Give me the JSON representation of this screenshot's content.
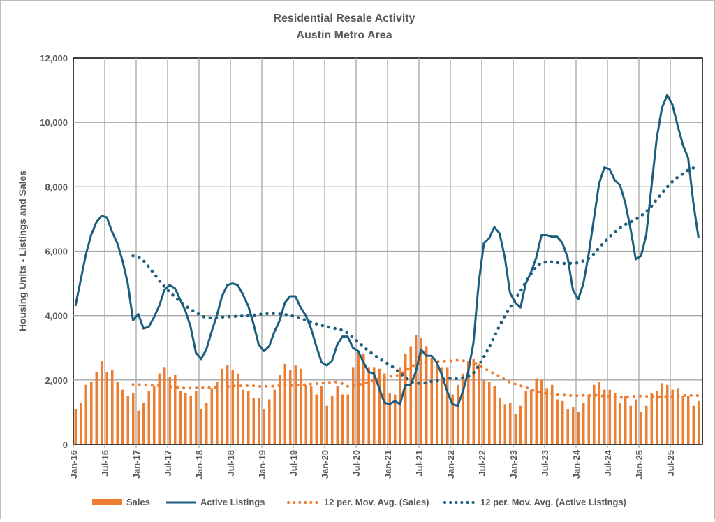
{
  "chart_data": {
    "type": "bar+line",
    "title": "Residential Resale Activity",
    "subtitle": "Austin Metro Area",
    "ylabel": "Housing Units - Listings and Sales",
    "xlabel": "",
    "ylim": [
      0,
      12000
    ],
    "yticks": [
      0,
      2000,
      4000,
      6000,
      8000,
      10000,
      12000
    ],
    "ytick_labels": [
      "0",
      "2,000",
      "4,000",
      "6,000",
      "8,000",
      "10,000",
      "12,000"
    ],
    "x_start": "Jan-16",
    "x_tick_labels": [
      "Jan-16",
      "Jul-16",
      "Jan-17",
      "Jul-17",
      "Jan-18",
      "Jul-18",
      "Jan-19",
      "Jul-19",
      "Jan-20",
      "Jul-20",
      "Jan-21",
      "Jul-21",
      "Jan-22",
      "Jul-22",
      "Jan-23",
      "Jul-23",
      "Jan-24",
      "Jul-24",
      "Jan-25",
      "Jul-25"
    ],
    "grid": true,
    "legend_position": "bottom",
    "ma_period": 12,
    "colors": {
      "sales": "#ED7D31",
      "listings": "#1B5E7E"
    },
    "legend": [
      "Sales",
      "Active Listings",
      "12 per. Mov. Avg. (Sales)",
      "12 per. Mov. Avg. (Active Listings)"
    ],
    "series": [
      {
        "name": "Sales",
        "type": "bar",
        "values": [
          1100,
          1300,
          1850,
          1950,
          2250,
          2600,
          2250,
          2300,
          1950,
          1700,
          1500,
          1600,
          1050,
          1300,
          1650,
          1800,
          2200,
          2400,
          2100,
          2150,
          1650,
          1600,
          1500,
          1650,
          1100,
          1300,
          1750,
          1950,
          2350,
          2450,
          2300,
          2200,
          1700,
          1650,
          1450,
          1450,
          1100,
          1400,
          1700,
          2150,
          2500,
          2300,
          2450,
          2350,
          1850,
          1800,
          1550,
          1800,
          1200,
          1500,
          1800,
          1550,
          1550,
          2400,
          2850,
          2800,
          2400,
          2400,
          2350,
          2200,
          1600,
          1550,
          2400,
          2800,
          3050,
          3400,
          3300,
          3050,
          2700,
          2500,
          2400,
          2400,
          1550,
          1850,
          2200,
          2600,
          2650,
          2500,
          2000,
          1950,
          1800,
          1450,
          1250,
          1300,
          950,
          1200,
          1650,
          1700,
          2050,
          2000,
          1750,
          1850,
          1400,
          1350,
          1100,
          1150,
          1000,
          1300,
          1550,
          1850,
          1950,
          1700,
          1700,
          1600,
          1300,
          1500,
          1200,
          1400,
          1000,
          1200,
          1600,
          1650,
          1900,
          1850,
          1700,
          1750,
          1500,
          1500,
          1200,
          1350
        ]
      },
      {
        "name": "Active Listings",
        "type": "line",
        "values": [
          4300,
          5100,
          5900,
          6500,
          6900,
          7100,
          7050,
          6600,
          6250,
          5700,
          5000,
          3850,
          4050,
          3600,
          3650,
          3950,
          4300,
          4800,
          4950,
          4850,
          4500,
          4150,
          3650,
          2850,
          2650,
          2950,
          3500,
          4000,
          4600,
          4950,
          5000,
          4950,
          4650,
          4300,
          3750,
          3100,
          2900,
          3050,
          3500,
          3850,
          4400,
          4600,
          4600,
          4250,
          4000,
          3600,
          3050,
          2550,
          2450,
          2600,
          3100,
          3350,
          3350,
          3000,
          2900,
          2550,
          2250,
          2200,
          1750,
          1300,
          1250,
          1350,
          1250,
          1850,
          1850,
          2250,
          2950,
          2750,
          2750,
          2550,
          2150,
          1650,
          1250,
          1200,
          1650,
          2250,
          3150,
          5000,
          6250,
          6400,
          6750,
          6550,
          5800,
          4700,
          4400,
          4250,
          5000,
          5350,
          5800,
          6500,
          6500,
          6450,
          6450,
          6250,
          5800,
          4800,
          4500,
          5000,
          5900,
          7000,
          8100,
          8600,
          8550,
          8200,
          8050,
          7500,
          6700,
          5750,
          5850,
          6500,
          8000,
          9500,
          10450,
          10850,
          10550,
          9900,
          9300,
          8900,
          7500,
          6400
        ]
      }
    ]
  }
}
